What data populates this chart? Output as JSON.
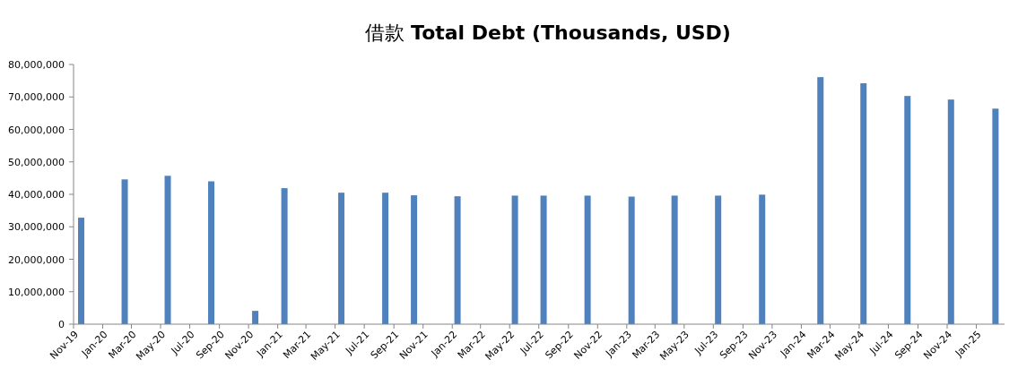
{
  "chart_data": {
    "type": "bar",
    "title": "借款 **Total Debt (Thousands, USD)**",
    "color": "#4f81bd",
    "x": [
      "2019-11-17",
      "2020-02-16",
      "2020-05-16",
      "2020-08-15",
      "2020-11-15",
      "2021-01-15",
      "2021-05-14",
      "2021-08-14",
      "2021-10-13",
      "2022-01-12",
      "2022-05-12",
      "2022-07-11",
      "2022-10-11",
      "2023-01-11",
      "2023-04-11",
      "2023-07-11",
      "2023-10-11",
      "2024-02-10",
      "2024-05-10",
      "2024-08-10",
      "2024-11-09",
      "2025-02-10"
    ],
    "values": [
      32800000,
      44600000,
      45700000,
      44000000,
      4100000,
      41900000,
      40500000,
      40500000,
      39700000,
      39400000,
      39600000,
      39600000,
      39600000,
      39300000,
      39600000,
      39600000,
      39900000,
      76100000,
      74200000,
      70300000,
      69200000,
      66400000
    ],
    "ylim": [
      0,
      80000000
    ],
    "yticks": [
      {
        "value": 0,
        "label": "0"
      },
      {
        "value": 10000000,
        "label": "10,000,000"
      },
      {
        "value": 20000000,
        "label": "20,000,000"
      },
      {
        "value": 30000000,
        "label": "30,000,000"
      },
      {
        "value": 40000000,
        "label": "40,000,000"
      },
      {
        "value": 50000000,
        "label": "50,000,000"
      },
      {
        "value": 60000000,
        "label": "60,000,000"
      },
      {
        "value": 70000000,
        "label": "70,000,000"
      },
      {
        "value": 80000000,
        "label": "80,000,000"
      }
    ],
    "xlim": [
      "2019-11-01",
      "2025-03-01"
    ],
    "xticks": [
      {
        "value": "2019-11-01",
        "label": "Nov-19"
      },
      {
        "value": "2020-01-01",
        "label": "Jan-20"
      },
      {
        "value": "2020-03-01",
        "label": "Mar-20"
      },
      {
        "value": "2020-05-01",
        "label": "May-20"
      },
      {
        "value": "2020-07-01",
        "label": "Jul-20"
      },
      {
        "value": "2020-09-01",
        "label": "Sep-20"
      },
      {
        "value": "2020-11-01",
        "label": "Nov-20"
      },
      {
        "value": "2021-01-01",
        "label": "Jan-21"
      },
      {
        "value": "2021-03-01",
        "label": "Mar-21"
      },
      {
        "value": "2021-05-01",
        "label": "May-21"
      },
      {
        "value": "2021-07-01",
        "label": "Jul-21"
      },
      {
        "value": "2021-09-01",
        "label": "Sep-21"
      },
      {
        "value": "2021-11-01",
        "label": "Nov-21"
      },
      {
        "value": "2022-01-01",
        "label": "Jan-22"
      },
      {
        "value": "2022-03-01",
        "label": "Mar-22"
      },
      {
        "value": "2022-05-01",
        "label": "May-22"
      },
      {
        "value": "2022-07-01",
        "label": "Jul-22"
      },
      {
        "value": "2022-09-01",
        "label": "Sep-22"
      },
      {
        "value": "2022-11-01",
        "label": "Nov-22"
      },
      {
        "value": "2023-01-01",
        "label": "Jan-23"
      },
      {
        "value": "2023-03-01",
        "label": "Mar-23"
      },
      {
        "value": "2023-05-01",
        "label": "May-23"
      },
      {
        "value": "2023-07-01",
        "label": "Jul-23"
      },
      {
        "value": "2023-09-01",
        "label": "Sep-23"
      },
      {
        "value": "2023-11-01",
        "label": "Nov-23"
      },
      {
        "value": "2024-01-01",
        "label": "Jan-24"
      },
      {
        "value": "2024-03-01",
        "label": "Mar-24"
      },
      {
        "value": "2024-05-01",
        "label": "May-24"
      },
      {
        "value": "2024-07-01",
        "label": "Jul-24"
      },
      {
        "value": "2024-09-01",
        "label": "Sep-24"
      },
      {
        "value": "2024-11-01",
        "label": "Nov-24"
      },
      {
        "value": "2025-01-01",
        "label": "Jan-25"
      }
    ]
  }
}
